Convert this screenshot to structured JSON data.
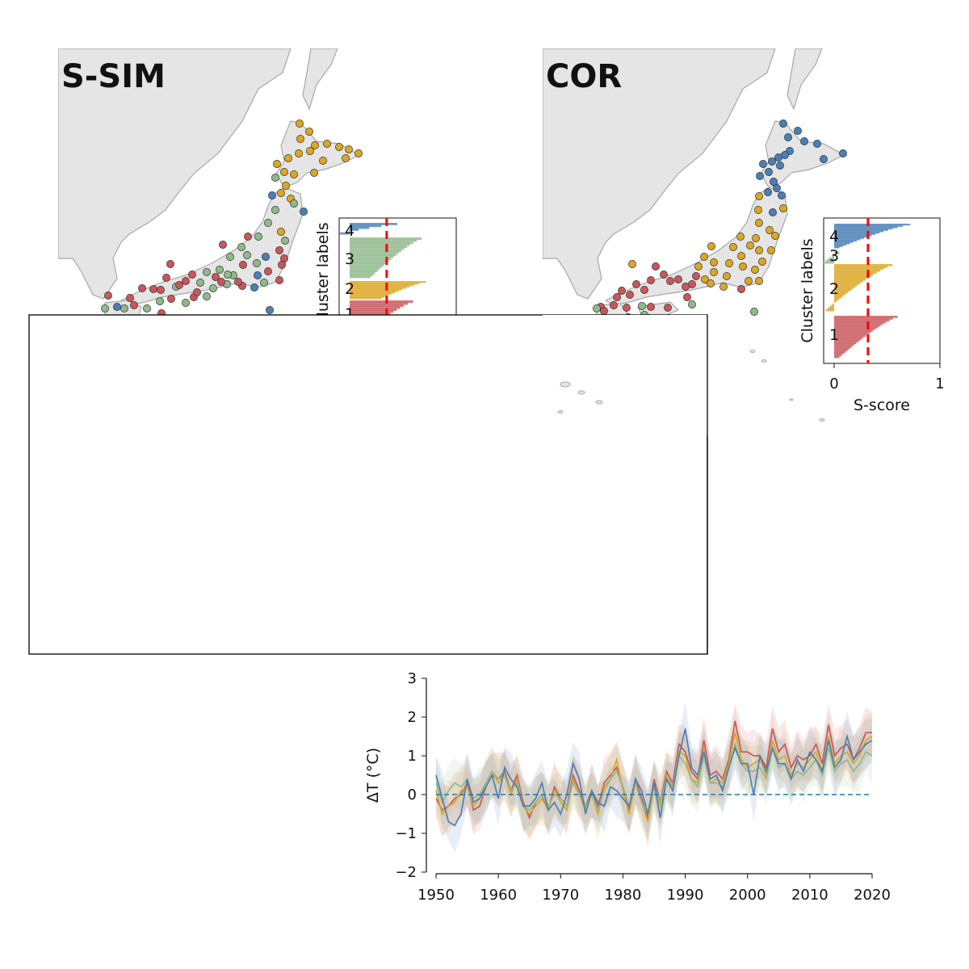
{
  "colors": {
    "cluster1": "#c9565b",
    "cluster2": "#dca623",
    "cluster3": "#8fb98a",
    "cluster4": "#4a7fb5",
    "land": "#e5e5e5",
    "coast": "#a8a8a8",
    "mean_line": "#ff0000",
    "baseline": "#1f77b4"
  },
  "panels": [
    {
      "id": "ssim",
      "title": "S-SIM",
      "inset": {
        "cluster_labels": [
          "4",
          "3",
          "2",
          "1"
        ],
        "ylabel": "Cluster labels",
        "xlabel": "",
        "xticks": [],
        "mean_score": 0.35
      }
    },
    {
      "id": "cor",
      "title": "COR",
      "inset": {
        "cluster_labels": [
          "4",
          "3",
          "2",
          "1"
        ],
        "ylabel": "Cluster labels",
        "xlabel": "S-score",
        "xticks": [
          "0",
          "1"
        ],
        "mean_score": 0.32
      }
    }
  ],
  "chart_data": {
    "type": "line",
    "ylabel": "ΔT (°C)",
    "xlim": [
      1950,
      2020
    ],
    "ylim": [
      -2,
      3
    ],
    "xticks": [
      1950,
      1960,
      1970,
      1980,
      1990,
      2000,
      2010,
      2020
    ],
    "yticks": [
      -2,
      -1,
      0,
      1,
      2,
      3
    ],
    "baseline": 0,
    "x": [
      1950,
      1951,
      1952,
      1953,
      1954,
      1955,
      1956,
      1957,
      1958,
      1959,
      1960,
      1961,
      1962,
      1963,
      1964,
      1965,
      1966,
      1967,
      1968,
      1969,
      1970,
      1971,
      1972,
      1973,
      1974,
      1975,
      1976,
      1977,
      1978,
      1979,
      1980,
      1981,
      1982,
      1983,
      1984,
      1985,
      1986,
      1987,
      1988,
      1989,
      1990,
      1991,
      1992,
      1993,
      1994,
      1995,
      1996,
      1997,
      1998,
      1999,
      2000,
      2001,
      2002,
      2003,
      2004,
      2005,
      2006,
      2007,
      2008,
      2009,
      2010,
      2011,
      2012,
      2013,
      2014,
      2015,
      2016,
      2017,
      2018,
      2019,
      2020
    ],
    "series": [
      {
        "color_key": "cluster1",
        "values": [
          -0.1,
          -0.4,
          -0.3,
          -0.1,
          0.0,
          0.3,
          -0.4,
          -0.3,
          0.2,
          0.5,
          0.4,
          0.6,
          0.1,
          0.5,
          -0.2,
          -0.6,
          -0.2,
          0.0,
          -0.4,
          0.2,
          -0.1,
          -0.3,
          0.5,
          0.1,
          -0.3,
          0.1,
          -0.3,
          0.3,
          0.5,
          0.7,
          0.2,
          -0.4,
          0.4,
          -0.1,
          -0.6,
          0.4,
          -0.2,
          0.6,
          0.3,
          1.3,
          1.1,
          0.6,
          0.4,
          1.4,
          0.5,
          0.6,
          0.4,
          0.9,
          1.9,
          1.1,
          1.1,
          1.0,
          1.0,
          0.7,
          1.7,
          1.1,
          1.3,
          0.7,
          1.0,
          0.9,
          1.0,
          1.3,
          0.8,
          1.8,
          1.0,
          1.2,
          1.3,
          0.9,
          1.2,
          1.6,
          1.6
        ]
      },
      {
        "color_key": "cluster2",
        "values": [
          0.1,
          -0.5,
          -0.3,
          -0.2,
          0.1,
          0.2,
          -0.3,
          -0.1,
          0.3,
          0.6,
          0.3,
          0.5,
          0.0,
          0.4,
          -0.3,
          -0.5,
          -0.3,
          -0.1,
          -0.4,
          0.1,
          -0.2,
          -0.4,
          0.4,
          0.0,
          -0.4,
          0.0,
          -0.5,
          0.2,
          0.4,
          0.9,
          0.1,
          -0.5,
          0.3,
          -0.2,
          -0.7,
          0.2,
          -0.3,
          0.5,
          0.2,
          1.1,
          1.0,
          0.4,
          0.3,
          1.2,
          0.3,
          0.4,
          0.3,
          0.8,
          1.6,
          0.9,
          0.7,
          0.8,
          0.9,
          0.5,
          1.4,
          0.9,
          1.0,
          0.5,
          0.8,
          0.7,
          0.9,
          1.1,
          0.6,
          1.5,
          0.8,
          1.0,
          1.1,
          0.8,
          1.0,
          1.4,
          1.5
        ]
      },
      {
        "color_key": "cluster3",
        "values": [
          0.3,
          -0.2,
          0.1,
          0.3,
          0.2,
          0.4,
          -0.1,
          0.0,
          0.3,
          0.6,
          0.4,
          0.5,
          0.1,
          0.3,
          -0.3,
          -0.4,
          -0.2,
          0.0,
          -0.3,
          0.0,
          -0.1,
          -0.3,
          0.3,
          0.0,
          -0.3,
          0.0,
          -0.4,
          0.1,
          0.4,
          0.6,
          0.2,
          -0.3,
          0.3,
          -0.2,
          -0.5,
          0.2,
          -0.2,
          0.4,
          0.2,
          1.0,
          0.8,
          0.4,
          0.2,
          1.0,
          0.3,
          0.3,
          0.2,
          0.7,
          1.3,
          0.8,
          0.6,
          0.6,
          0.7,
          0.4,
          1.2,
          0.7,
          0.8,
          0.4,
          0.6,
          0.5,
          0.7,
          0.9,
          0.5,
          1.2,
          0.6,
          0.8,
          0.9,
          0.6,
          0.8,
          1.1,
          1.0
        ]
      },
      {
        "color_key": "cluster4",
        "values": [
          0.5,
          -0.1,
          -0.7,
          -0.8,
          -0.5,
          0.4,
          -0.2,
          -0.1,
          0.2,
          0.5,
          -0.1,
          0.7,
          0.4,
          0.2,
          -0.3,
          -0.3,
          -0.1,
          0.3,
          -0.4,
          -0.2,
          -0.5,
          0.0,
          0.8,
          0.4,
          -0.5,
          0.1,
          -0.2,
          -0.3,
          0.2,
          0.1,
          -0.1,
          -0.3,
          0.4,
          0.1,
          -0.5,
          0.3,
          -0.6,
          0.4,
          0.1,
          1.0,
          1.7,
          0.7,
          0.5,
          1.1,
          0.4,
          0.5,
          0.1,
          0.7,
          1.2,
          0.8,
          0.8,
          0.0,
          1.0,
          0.6,
          1.2,
          0.8,
          0.8,
          0.4,
          0.9,
          0.6,
          1.1,
          0.9,
          0.6,
          1.4,
          0.7,
          0.9,
          1.5,
          0.9,
          1.1,
          1.3,
          1.4
        ]
      }
    ]
  }
}
